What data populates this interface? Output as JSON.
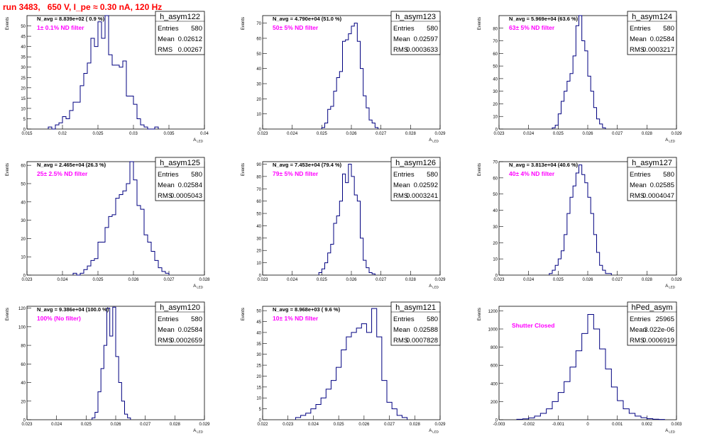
{
  "run_title": "run 3483,   650 V, I_pe ≈ 0.30 nA, 120 Hz",
  "stat_labels": [
    "Entries",
    "Mean",
    "RMS"
  ],
  "axis_label_y": "Events",
  "axis_label_x": "A",
  "axis_label_x_sub": "LED",
  "colors": {
    "hist": "#000080",
    "annotation": "#ff00ff",
    "title": "#ff0000",
    "axis": "#000000"
  },
  "chart_data": [
    {
      "type": "bar",
      "name": "h_asym122",
      "navg": "N_avg = 8.839e+02 ( 0.9 %)",
      "filter": "1± 0.1% ND filter",
      "stats": [
        "580",
        "0.02612",
        "0.00267"
      ],
      "xlim": [
        0.015,
        0.04
      ],
      "ylim": [
        0,
        55
      ],
      "xticks": [
        "0.015",
        "0.02",
        "0.025",
        "0.03",
        "0.035",
        "0.04"
      ],
      "yticks": [
        0,
        5,
        10,
        15,
        20,
        25,
        30,
        35,
        40,
        45,
        50
      ],
      "bins": [
        [
          0.018,
          1
        ],
        [
          0.0185,
          0
        ],
        [
          0.019,
          2
        ],
        [
          0.0195,
          3
        ],
        [
          0.02,
          6
        ],
        [
          0.0205,
          5
        ],
        [
          0.021,
          9
        ],
        [
          0.0215,
          13
        ],
        [
          0.022,
          13
        ],
        [
          0.0225,
          21
        ],
        [
          0.023,
          27
        ],
        [
          0.0235,
          32
        ],
        [
          0.024,
          44
        ],
        [
          0.0245,
          40
        ],
        [
          0.025,
          52
        ],
        [
          0.0255,
          44
        ],
        [
          0.026,
          55
        ],
        [
          0.0265,
          36
        ],
        [
          0.027,
          31
        ],
        [
          0.0275,
          31
        ],
        [
          0.028,
          30
        ],
        [
          0.0285,
          33
        ],
        [
          0.029,
          16
        ],
        [
          0.0295,
          16
        ],
        [
          0.03,
          12
        ],
        [
          0.0305,
          5
        ],
        [
          0.031,
          2
        ],
        [
          0.0315,
          1
        ],
        [
          0.032,
          0
        ],
        [
          0.0325,
          0
        ],
        [
          0.033,
          1
        ]
      ]
    },
    {
      "type": "bar",
      "name": "h_asym123",
      "navg": "N_avg = 4.790e+04 (51.0 %)",
      "filter": "50± 5% ND filter",
      "stats": [
        "580",
        "0.02597",
        "0.0003633"
      ],
      "xlim": [
        0.023,
        0.029
      ],
      "ylim": [
        0,
        75
      ],
      "xticks": [
        "0.023",
        "0.024",
        "0.025",
        "0.026",
        "0.027",
        "0.028",
        "0.029"
      ],
      "yticks": [
        0,
        10,
        20,
        30,
        40,
        50,
        60,
        70
      ],
      "bins": [
        [
          0.025,
          1
        ],
        [
          0.0251,
          4
        ],
        [
          0.0252,
          13
        ],
        [
          0.0253,
          15
        ],
        [
          0.0254,
          25
        ],
        [
          0.0255,
          34
        ],
        [
          0.0256,
          38
        ],
        [
          0.0257,
          58
        ],
        [
          0.0258,
          59
        ],
        [
          0.0259,
          63
        ],
        [
          0.026,
          68
        ],
        [
          0.0261,
          70
        ],
        [
          0.0262,
          58
        ],
        [
          0.0263,
          40
        ],
        [
          0.0264,
          22
        ],
        [
          0.0265,
          14
        ],
        [
          0.0266,
          6
        ],
        [
          0.0267,
          4
        ],
        [
          0.0268,
          1
        ]
      ]
    },
    {
      "type": "bar",
      "name": "h_asym124",
      "navg": "N_avg = 5.969e+04 (63.6 %)",
      "filter": "63± 5% ND filter",
      "stats": [
        "580",
        "0.02584",
        "0.0003217"
      ],
      "xlim": [
        0.023,
        0.029
      ],
      "ylim": [
        0,
        90
      ],
      "xticks": [
        "0.023",
        "0.024",
        "0.025",
        "0.026",
        "0.027",
        "0.028",
        "0.029"
      ],
      "yticks": [
        0,
        10,
        20,
        30,
        40,
        50,
        60,
        70,
        80
      ],
      "bins": [
        [
          0.0248,
          1
        ],
        [
          0.0249,
          3
        ],
        [
          0.025,
          12
        ],
        [
          0.0251,
          22
        ],
        [
          0.0252,
          30
        ],
        [
          0.0253,
          38
        ],
        [
          0.0254,
          44
        ],
        [
          0.0255,
          58
        ],
        [
          0.0256,
          82
        ],
        [
          0.0257,
          90
        ],
        [
          0.0258,
          70
        ],
        [
          0.0259,
          62
        ],
        [
          0.026,
          42
        ],
        [
          0.0261,
          30
        ],
        [
          0.0262,
          17
        ],
        [
          0.0263,
          8
        ],
        [
          0.0264,
          4
        ],
        [
          0.0265,
          1
        ]
      ]
    },
    {
      "type": "bar",
      "name": "h_asym125",
      "navg": "N_avg = 2.465e+04 (26.3 %)",
      "filter": "25± 2.5% ND filter",
      "stats": [
        "580",
        "0.02584",
        "0.0005043"
      ],
      "xlim": [
        0.023,
        0.028
      ],
      "ylim": [
        0,
        62
      ],
      "xticks": [
        "0.023",
        "0.024",
        "0.025",
        "0.026",
        "0.027",
        "0.028"
      ],
      "yticks": [
        0,
        10,
        20,
        30,
        40,
        50,
        60
      ],
      "bins": [
        [
          0.0243,
          1
        ],
        [
          0.0244,
          0
        ],
        [
          0.0245,
          1
        ],
        [
          0.0246,
          3
        ],
        [
          0.0247,
          5
        ],
        [
          0.0248,
          8
        ],
        [
          0.0249,
          9
        ],
        [
          0.025,
          18
        ],
        [
          0.0251,
          18
        ],
        [
          0.0252,
          26
        ],
        [
          0.0253,
          32
        ],
        [
          0.0254,
          33
        ],
        [
          0.0255,
          42
        ],
        [
          0.0256,
          44
        ],
        [
          0.0257,
          46
        ],
        [
          0.0258,
          50
        ],
        [
          0.0259,
          62
        ],
        [
          0.026,
          52
        ],
        [
          0.0261,
          38
        ],
        [
          0.0262,
          36
        ],
        [
          0.0263,
          22
        ],
        [
          0.0264,
          18
        ],
        [
          0.0265,
          13
        ],
        [
          0.0266,
          8
        ],
        [
          0.0267,
          4
        ],
        [
          0.0268,
          2
        ],
        [
          0.0269,
          1
        ]
      ]
    },
    {
      "type": "bar",
      "name": "h_asym126",
      "navg": "N_avg = 7.453e+04 (79.4 %)",
      "filter": "79± 5% ND filter",
      "stats": [
        "580",
        "0.02592",
        "0.0003241"
      ],
      "xlim": [
        0.023,
        0.029
      ],
      "ylim": [
        0,
        92
      ],
      "xticks": [
        "0.023",
        "0.024",
        "0.025",
        "0.026",
        "0.027",
        "0.028",
        "0.029"
      ],
      "yticks": [
        0,
        10,
        20,
        30,
        40,
        50,
        60,
        70,
        80,
        90
      ],
      "bins": [
        [
          0.0249,
          2
        ],
        [
          0.025,
          5
        ],
        [
          0.0251,
          10
        ],
        [
          0.0252,
          18
        ],
        [
          0.0253,
          25
        ],
        [
          0.0254,
          42
        ],
        [
          0.0255,
          48
        ],
        [
          0.0256,
          60
        ],
        [
          0.0257,
          82
        ],
        [
          0.0258,
          75
        ],
        [
          0.0259,
          90
        ],
        [
          0.026,
          80
        ],
        [
          0.0261,
          65
        ],
        [
          0.0262,
          60
        ],
        [
          0.0263,
          30
        ],
        [
          0.0264,
          12
        ],
        [
          0.0265,
          6
        ],
        [
          0.0266,
          2
        ],
        [
          0.0267,
          1
        ]
      ]
    },
    {
      "type": "bar",
      "name": "h_asym127",
      "navg": "N_avg = 3.813e+04 (40.6 %)",
      "filter": "40± 4% ND filter",
      "stats": [
        "580",
        "0.02585",
        "0.0004047"
      ],
      "xlim": [
        0.023,
        0.029
      ],
      "ylim": [
        0,
        70
      ],
      "xticks": [
        "0.023",
        "0.024",
        "0.025",
        "0.026",
        "0.027",
        "0.028",
        "0.029"
      ],
      "yticks": [
        0,
        10,
        20,
        30,
        40,
        50,
        60,
        70
      ],
      "bins": [
        [
          0.0247,
          1
        ],
        [
          0.0248,
          3
        ],
        [
          0.0249,
          6
        ],
        [
          0.025,
          10
        ],
        [
          0.0251,
          15
        ],
        [
          0.0252,
          25
        ],
        [
          0.0253,
          38
        ],
        [
          0.0254,
          48
        ],
        [
          0.0255,
          55
        ],
        [
          0.0256,
          63
        ],
        [
          0.0257,
          68
        ],
        [
          0.0258,
          62
        ],
        [
          0.0259,
          57
        ],
        [
          0.026,
          48
        ],
        [
          0.0261,
          38
        ],
        [
          0.0262,
          25
        ],
        [
          0.0263,
          14
        ],
        [
          0.0264,
          6
        ],
        [
          0.0265,
          3
        ],
        [
          0.0266,
          1
        ],
        [
          0.0267,
          1
        ]
      ]
    },
    {
      "type": "bar",
      "name": "h_asym120",
      "navg": "N_avg = 9.386e+04 (100.0 %)",
      "filter": "100% (No filter)",
      "stats": [
        "580",
        "0.02584",
        "0.0002659"
      ],
      "xlim": [
        0.023,
        0.029
      ],
      "ylim": [
        0,
        122
      ],
      "xticks": [
        "0.023",
        "0.024",
        "0.025",
        "0.026",
        "0.027",
        "0.028",
        "0.029"
      ],
      "yticks": [
        0,
        20,
        40,
        60,
        80,
        100,
        120
      ],
      "bins": [
        [
          0.0252,
          2
        ],
        [
          0.0253,
          8
        ],
        [
          0.0254,
          30
        ],
        [
          0.0255,
          55
        ],
        [
          0.0256,
          80
        ],
        [
          0.0257,
          120
        ],
        [
          0.0258,
          90
        ],
        [
          0.0259,
          121
        ],
        [
          0.026,
          68
        ],
        [
          0.0261,
          40
        ],
        [
          0.0262,
          20
        ],
        [
          0.0263,
          6
        ],
        [
          0.0264,
          2
        ]
      ]
    },
    {
      "type": "bar",
      "name": "h_asym121",
      "navg": "N_avg = 8.968e+03 ( 9.6 %)",
      "filter": "10± 1% ND filter",
      "stats": [
        "580",
        "0.02588",
        "0.0007828"
      ],
      "xlim": [
        0.022,
        0.029
      ],
      "ylim": [
        0,
        52
      ],
      "xticks": [
        "0.022",
        "0.023",
        "0.024",
        "0.025",
        "0.026",
        "0.027",
        "0.028",
        "0.029"
      ],
      "yticks": [
        0,
        5,
        10,
        15,
        20,
        25,
        30,
        35,
        40,
        45,
        50
      ],
      "bins": [
        [
          0.0233,
          1
        ],
        [
          0.0235,
          2
        ],
        [
          0.0237,
          3
        ],
        [
          0.0239,
          5
        ],
        [
          0.0241,
          7
        ],
        [
          0.0243,
          10
        ],
        [
          0.0245,
          14
        ],
        [
          0.0247,
          18
        ],
        [
          0.0249,
          24
        ],
        [
          0.0251,
          32
        ],
        [
          0.0253,
          38
        ],
        [
          0.0255,
          40
        ],
        [
          0.0257,
          42
        ],
        [
          0.0259,
          44
        ],
        [
          0.0261,
          40
        ],
        [
          0.0263,
          51
        ],
        [
          0.0265,
          38
        ],
        [
          0.0267,
          18
        ],
        [
          0.0269,
          8
        ],
        [
          0.0271,
          5
        ],
        [
          0.0273,
          2
        ],
        [
          0.0275,
          1
        ]
      ]
    },
    {
      "type": "bar",
      "name": "hPed_asym",
      "navg": "",
      "filter": "Shutter Closed",
      "stats": [
        "25965",
        "3.022e-06",
        "0.0006919"
      ],
      "xlim": [
        -0.003,
        0.003
      ],
      "ylim": [
        0,
        1250
      ],
      "xticks": [
        "-0.003",
        "-0.002",
        "-0.001",
        "0",
        "0.001",
        "0.002",
        "0.003"
      ],
      "yticks": [
        0,
        200,
        400,
        600,
        800,
        1000,
        1200
      ],
      "bins": [
        [
          -0.0024,
          5
        ],
        [
          -0.0022,
          10
        ],
        [
          -0.002,
          20
        ],
        [
          -0.0018,
          40
        ],
        [
          -0.0016,
          70
        ],
        [
          -0.0014,
          120
        ],
        [
          -0.0012,
          200
        ],
        [
          -0.001,
          300
        ],
        [
          -0.0008,
          420
        ],
        [
          -0.0006,
          580
        ],
        [
          -0.0004,
          760
        ],
        [
          -0.0002,
          950
        ],
        [
          0.0,
          1160
        ],
        [
          0.0002,
          1000
        ],
        [
          0.0004,
          780
        ],
        [
          0.0006,
          560
        ],
        [
          0.0008,
          360
        ],
        [
          0.001,
          210
        ],
        [
          0.0012,
          120
        ],
        [
          0.0014,
          70
        ],
        [
          0.0016,
          40
        ],
        [
          0.0018,
          22
        ],
        [
          0.002,
          12
        ],
        [
          0.0022,
          6
        ],
        [
          0.0024,
          3
        ]
      ]
    }
  ]
}
